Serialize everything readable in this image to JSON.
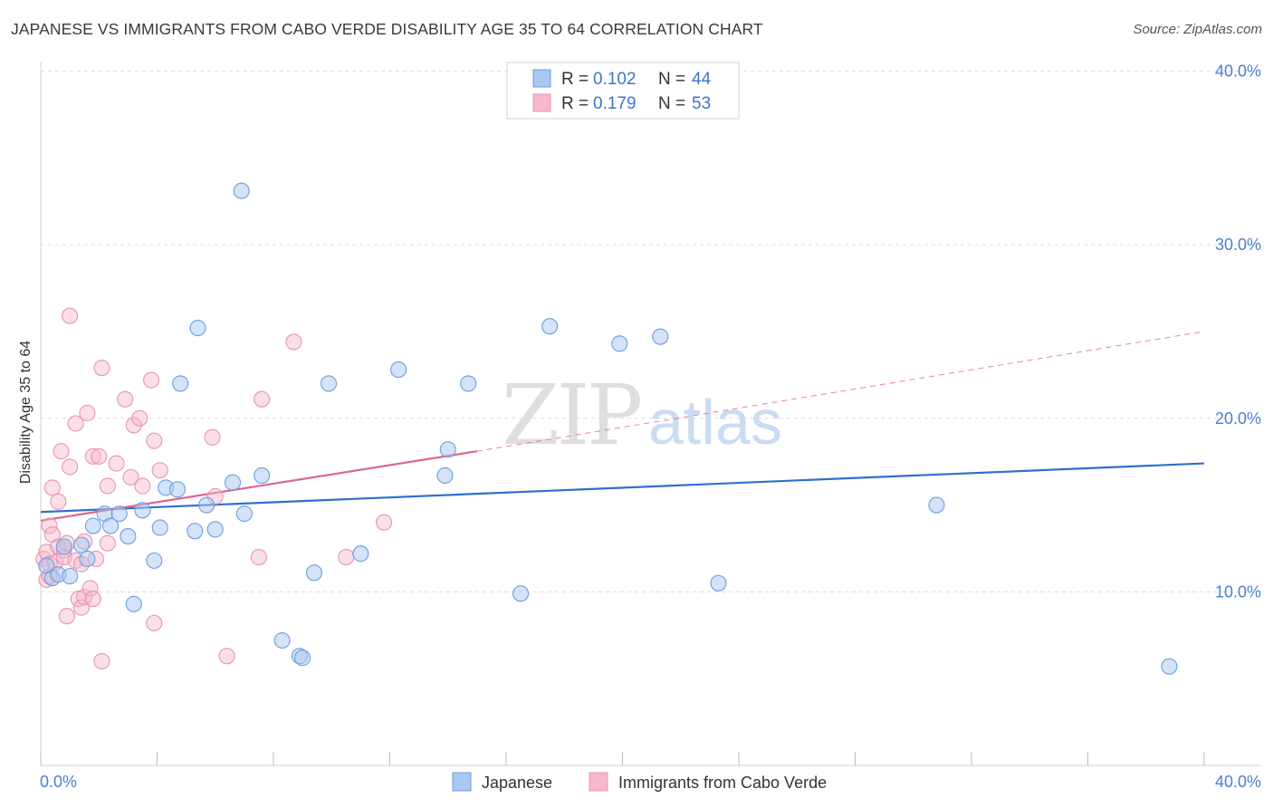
{
  "header": {
    "title": "JAPANESE VS IMMIGRANTS FROM CABO VERDE DISABILITY AGE 35 TO 64 CORRELATION CHART",
    "source": "Source: ZipAtlas.com"
  },
  "watermark": {
    "zip": "ZIP",
    "atlas": "atlas"
  },
  "legend": {
    "r_label": "R =",
    "n_label": "N =",
    "entries": [
      {
        "r": "0.102",
        "n": "44"
      },
      {
        "r": "0.179",
        "n": "53"
      }
    ]
  },
  "chart_data": {
    "type": "scatter",
    "title": "JAPANESE VS IMMIGRANTS FROM CABO VERDE DISABILITY AGE 35 TO 64 CORRELATION CHART",
    "xlabel": "",
    "ylabel": "Disability Age 35 to 64",
    "xlim": [
      0,
      40
    ],
    "ylim": [
      0,
      40
    ],
    "x_tick_labels": [
      "0.0%",
      "40.0%"
    ],
    "y_ticks": [
      {
        "value": 10,
        "label": "10.0%"
      },
      {
        "value": 20,
        "label": "20.0%"
      },
      {
        "value": 30,
        "label": "30.0%"
      },
      {
        "value": 40,
        "label": "40.0%"
      }
    ],
    "grid": true,
    "colors": {
      "japanese_fill": "#a9c8f0",
      "japanese_stroke": "#6b9ee0",
      "japanese_line": "#2f6fce",
      "cabo_fill": "#f6b8cb",
      "cabo_stroke": "#e993b0",
      "cabo_line": "#e0648f"
    },
    "series": [
      {
        "name": "Japanese",
        "r": 0.102,
        "n": 44,
        "trend": {
          "x0": 0,
          "y0": 14.6,
          "x1": 40,
          "y1": 17.4,
          "dashed_to": 40
        },
        "points": [
          [
            0.2,
            11.5
          ],
          [
            0.4,
            10.8
          ],
          [
            0.6,
            11.0
          ],
          [
            0.8,
            12.6
          ],
          [
            1.0,
            10.9
          ],
          [
            1.4,
            12.7
          ],
          [
            1.6,
            11.9
          ],
          [
            1.8,
            13.8
          ],
          [
            2.2,
            14.5
          ],
          [
            2.4,
            13.8
          ],
          [
            2.7,
            14.5
          ],
          [
            3.0,
            13.2
          ],
          [
            3.2,
            9.3
          ],
          [
            3.5,
            14.7
          ],
          [
            3.9,
            11.8
          ],
          [
            4.1,
            13.7
          ],
          [
            4.3,
            16.0
          ],
          [
            4.7,
            15.9
          ],
          [
            4.8,
            22.0
          ],
          [
            5.3,
            13.5
          ],
          [
            5.4,
            25.2
          ],
          [
            5.7,
            15.0
          ],
          [
            6.0,
            13.6
          ],
          [
            6.6,
            16.3
          ],
          [
            6.9,
            33.1
          ],
          [
            7.0,
            14.5
          ],
          [
            7.6,
            16.7
          ],
          [
            8.3,
            7.2
          ],
          [
            8.9,
            6.3
          ],
          [
            9.0,
            6.2
          ],
          [
            9.4,
            11.1
          ],
          [
            9.9,
            22.0
          ],
          [
            11.0,
            12.2
          ],
          [
            12.3,
            22.8
          ],
          [
            13.9,
            16.7
          ],
          [
            14.0,
            18.2
          ],
          [
            14.7,
            22.0
          ],
          [
            16.5,
            9.9
          ],
          [
            17.5,
            25.3
          ],
          [
            19.9,
            24.3
          ],
          [
            21.3,
            24.7
          ],
          [
            23.3,
            10.5
          ],
          [
            30.8,
            15.0
          ],
          [
            38.8,
            5.7
          ]
        ]
      },
      {
        "name": "Immigrants from Cabo Verde",
        "r": 0.179,
        "n": 53,
        "trend": {
          "x0": 0,
          "y0": 14.1,
          "x1": 15.0,
          "y1": 18.1,
          "dash_x1": 40,
          "dash_y1": 25.0
        },
        "points": [
          [
            0.1,
            11.9
          ],
          [
            0.2,
            10.7
          ],
          [
            0.2,
            12.3
          ],
          [
            0.3,
            11.6
          ],
          [
            0.3,
            10.9
          ],
          [
            0.3,
            13.8
          ],
          [
            0.4,
            13.3
          ],
          [
            0.4,
            16.0
          ],
          [
            0.5,
            11.7
          ],
          [
            0.6,
            12.6
          ],
          [
            0.6,
            15.2
          ],
          [
            0.7,
            18.1
          ],
          [
            0.8,
            12.4
          ],
          [
            0.8,
            12.0
          ],
          [
            0.9,
            12.8
          ],
          [
            0.9,
            8.6
          ],
          [
            1.0,
            17.2
          ],
          [
            1.0,
            25.9
          ],
          [
            1.2,
            19.7
          ],
          [
            1.2,
            11.8
          ],
          [
            1.3,
            9.6
          ],
          [
            1.4,
            9.1
          ],
          [
            1.4,
            11.6
          ],
          [
            1.5,
            12.9
          ],
          [
            1.5,
            9.7
          ],
          [
            1.6,
            20.3
          ],
          [
            1.7,
            10.2
          ],
          [
            1.8,
            9.6
          ],
          [
            1.8,
            17.8
          ],
          [
            1.9,
            11.9
          ],
          [
            2.0,
            17.8
          ],
          [
            2.1,
            22.9
          ],
          [
            2.1,
            6.0
          ],
          [
            2.3,
            12.8
          ],
          [
            2.3,
            16.1
          ],
          [
            2.6,
            17.4
          ],
          [
            2.9,
            21.1
          ],
          [
            3.1,
            16.6
          ],
          [
            3.2,
            19.6
          ],
          [
            3.4,
            20.0
          ],
          [
            3.5,
            16.1
          ],
          [
            3.8,
            22.2
          ],
          [
            3.9,
            18.7
          ],
          [
            3.9,
            8.2
          ],
          [
            4.1,
            17.0
          ],
          [
            5.9,
            18.9
          ],
          [
            6.0,
            15.5
          ],
          [
            6.4,
            6.3
          ],
          [
            7.5,
            12.0
          ],
          [
            7.6,
            21.1
          ],
          [
            8.7,
            24.4
          ],
          [
            10.5,
            12.0
          ],
          [
            11.8,
            14.0
          ]
        ]
      }
    ],
    "legend_position": "top-center",
    "bottom_legend": [
      "Japanese",
      "Immigrants from Cabo Verde"
    ]
  }
}
